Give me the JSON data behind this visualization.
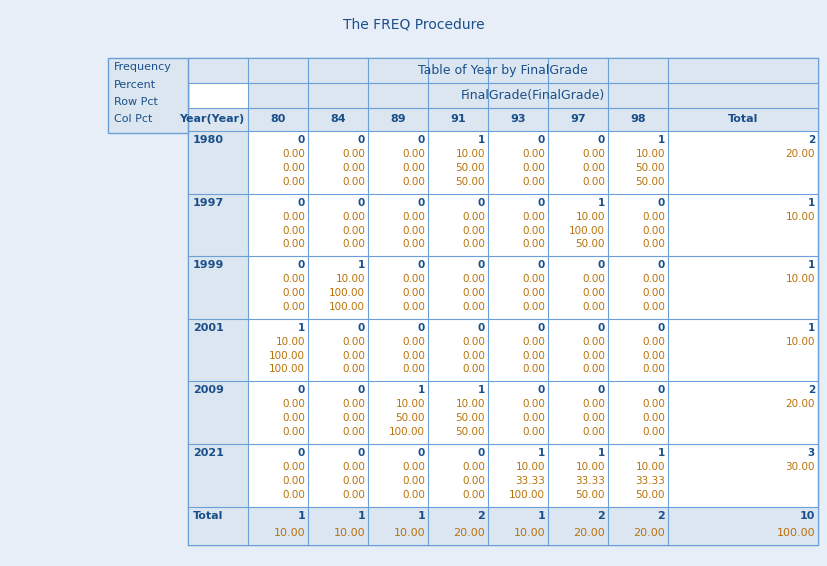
{
  "title": "The FREQ Procedure",
  "table_title": "Table of Year by FinalGrade",
  "col_header2": "FinalGrade(FinalGrade)",
  "legend_lines": [
    "Frequency",
    "Percent",
    "Row Pct",
    "Col Pct"
  ],
  "col_headers": [
    "Year(Year)",
    "80",
    "84",
    "89",
    "91",
    "93",
    "97",
    "98",
    "Total"
  ],
  "rows": [
    {
      "year": "1980",
      "cells": [
        [
          "0",
          "0.00",
          "0.00",
          "0.00"
        ],
        [
          "0",
          "0.00",
          "0.00",
          "0.00"
        ],
        [
          "0",
          "0.00",
          "0.00",
          "0.00"
        ],
        [
          "1",
          "10.00",
          "50.00",
          "50.00"
        ],
        [
          "0",
          "0.00",
          "0.00",
          "0.00"
        ],
        [
          "0",
          "0.00",
          "0.00",
          "0.00"
        ],
        [
          "1",
          "10.00",
          "50.00",
          "50.00"
        ],
        [
          "2",
          "20.00",
          "",
          ""
        ]
      ]
    },
    {
      "year": "1997",
      "cells": [
        [
          "0",
          "0.00",
          "0.00",
          "0.00"
        ],
        [
          "0",
          "0.00",
          "0.00",
          "0.00"
        ],
        [
          "0",
          "0.00",
          "0.00",
          "0.00"
        ],
        [
          "0",
          "0.00",
          "0.00",
          "0.00"
        ],
        [
          "0",
          "0.00",
          "0.00",
          "0.00"
        ],
        [
          "1",
          "10.00",
          "100.00",
          "50.00"
        ],
        [
          "0",
          "0.00",
          "0.00",
          "0.00"
        ],
        [
          "1",
          "10.00",
          "",
          ""
        ]
      ]
    },
    {
      "year": "1999",
      "cells": [
        [
          "0",
          "0.00",
          "0.00",
          "0.00"
        ],
        [
          "1",
          "10.00",
          "100.00",
          "100.00"
        ],
        [
          "0",
          "0.00",
          "0.00",
          "0.00"
        ],
        [
          "0",
          "0.00",
          "0.00",
          "0.00"
        ],
        [
          "0",
          "0.00",
          "0.00",
          "0.00"
        ],
        [
          "0",
          "0.00",
          "0.00",
          "0.00"
        ],
        [
          "0",
          "0.00",
          "0.00",
          "0.00"
        ],
        [
          "1",
          "10.00",
          "",
          ""
        ]
      ]
    },
    {
      "year": "2001",
      "cells": [
        [
          "1",
          "10.00",
          "100.00",
          "100.00"
        ],
        [
          "0",
          "0.00",
          "0.00",
          "0.00"
        ],
        [
          "0",
          "0.00",
          "0.00",
          "0.00"
        ],
        [
          "0",
          "0.00",
          "0.00",
          "0.00"
        ],
        [
          "0",
          "0.00",
          "0.00",
          "0.00"
        ],
        [
          "0",
          "0.00",
          "0.00",
          "0.00"
        ],
        [
          "0",
          "0.00",
          "0.00",
          "0.00"
        ],
        [
          "1",
          "10.00",
          "",
          ""
        ]
      ]
    },
    {
      "year": "2009",
      "cells": [
        [
          "0",
          "0.00",
          "0.00",
          "0.00"
        ],
        [
          "0",
          "0.00",
          "0.00",
          "0.00"
        ],
        [
          "1",
          "10.00",
          "50.00",
          "100.00"
        ],
        [
          "1",
          "10.00",
          "50.00",
          "50.00"
        ],
        [
          "0",
          "0.00",
          "0.00",
          "0.00"
        ],
        [
          "0",
          "0.00",
          "0.00",
          "0.00"
        ],
        [
          "0",
          "0.00",
          "0.00",
          "0.00"
        ],
        [
          "2",
          "20.00",
          "",
          ""
        ]
      ]
    },
    {
      "year": "2021",
      "cells": [
        [
          "0",
          "0.00",
          "0.00",
          "0.00"
        ],
        [
          "0",
          "0.00",
          "0.00",
          "0.00"
        ],
        [
          "0",
          "0.00",
          "0.00",
          "0.00"
        ],
        [
          "0",
          "0.00",
          "0.00",
          "0.00"
        ],
        [
          "1",
          "10.00",
          "33.33",
          "100.00"
        ],
        [
          "1",
          "10.00",
          "33.33",
          "50.00"
        ],
        [
          "1",
          "10.00",
          "33.33",
          "50.00"
        ],
        [
          "3",
          "30.00",
          "",
          ""
        ]
      ]
    },
    {
      "year": "Total",
      "cells": [
        [
          "1",
          "10.00",
          "",
          ""
        ],
        [
          "1",
          "10.00",
          "",
          ""
        ],
        [
          "1",
          "10.00",
          "",
          ""
        ],
        [
          "2",
          "20.00",
          "",
          ""
        ],
        [
          "1",
          "10.00",
          "",
          ""
        ],
        [
          "2",
          "20.00",
          "",
          ""
        ],
        [
          "2",
          "20.00",
          "",
          ""
        ],
        [
          "10",
          "100.00",
          "",
          ""
        ]
      ]
    }
  ],
  "bg_color": "#e8eef7",
  "table_bg": "#ffffff",
  "header_bg": "#dce6f0",
  "header_text_color": "#1a4f8a",
  "freq_color": "#1a4f8a",
  "pct_color": "#b8720a",
  "title_color": "#1a4f8a",
  "legend_bg": "#dce6f0",
  "border_color": "#6a9fd8"
}
